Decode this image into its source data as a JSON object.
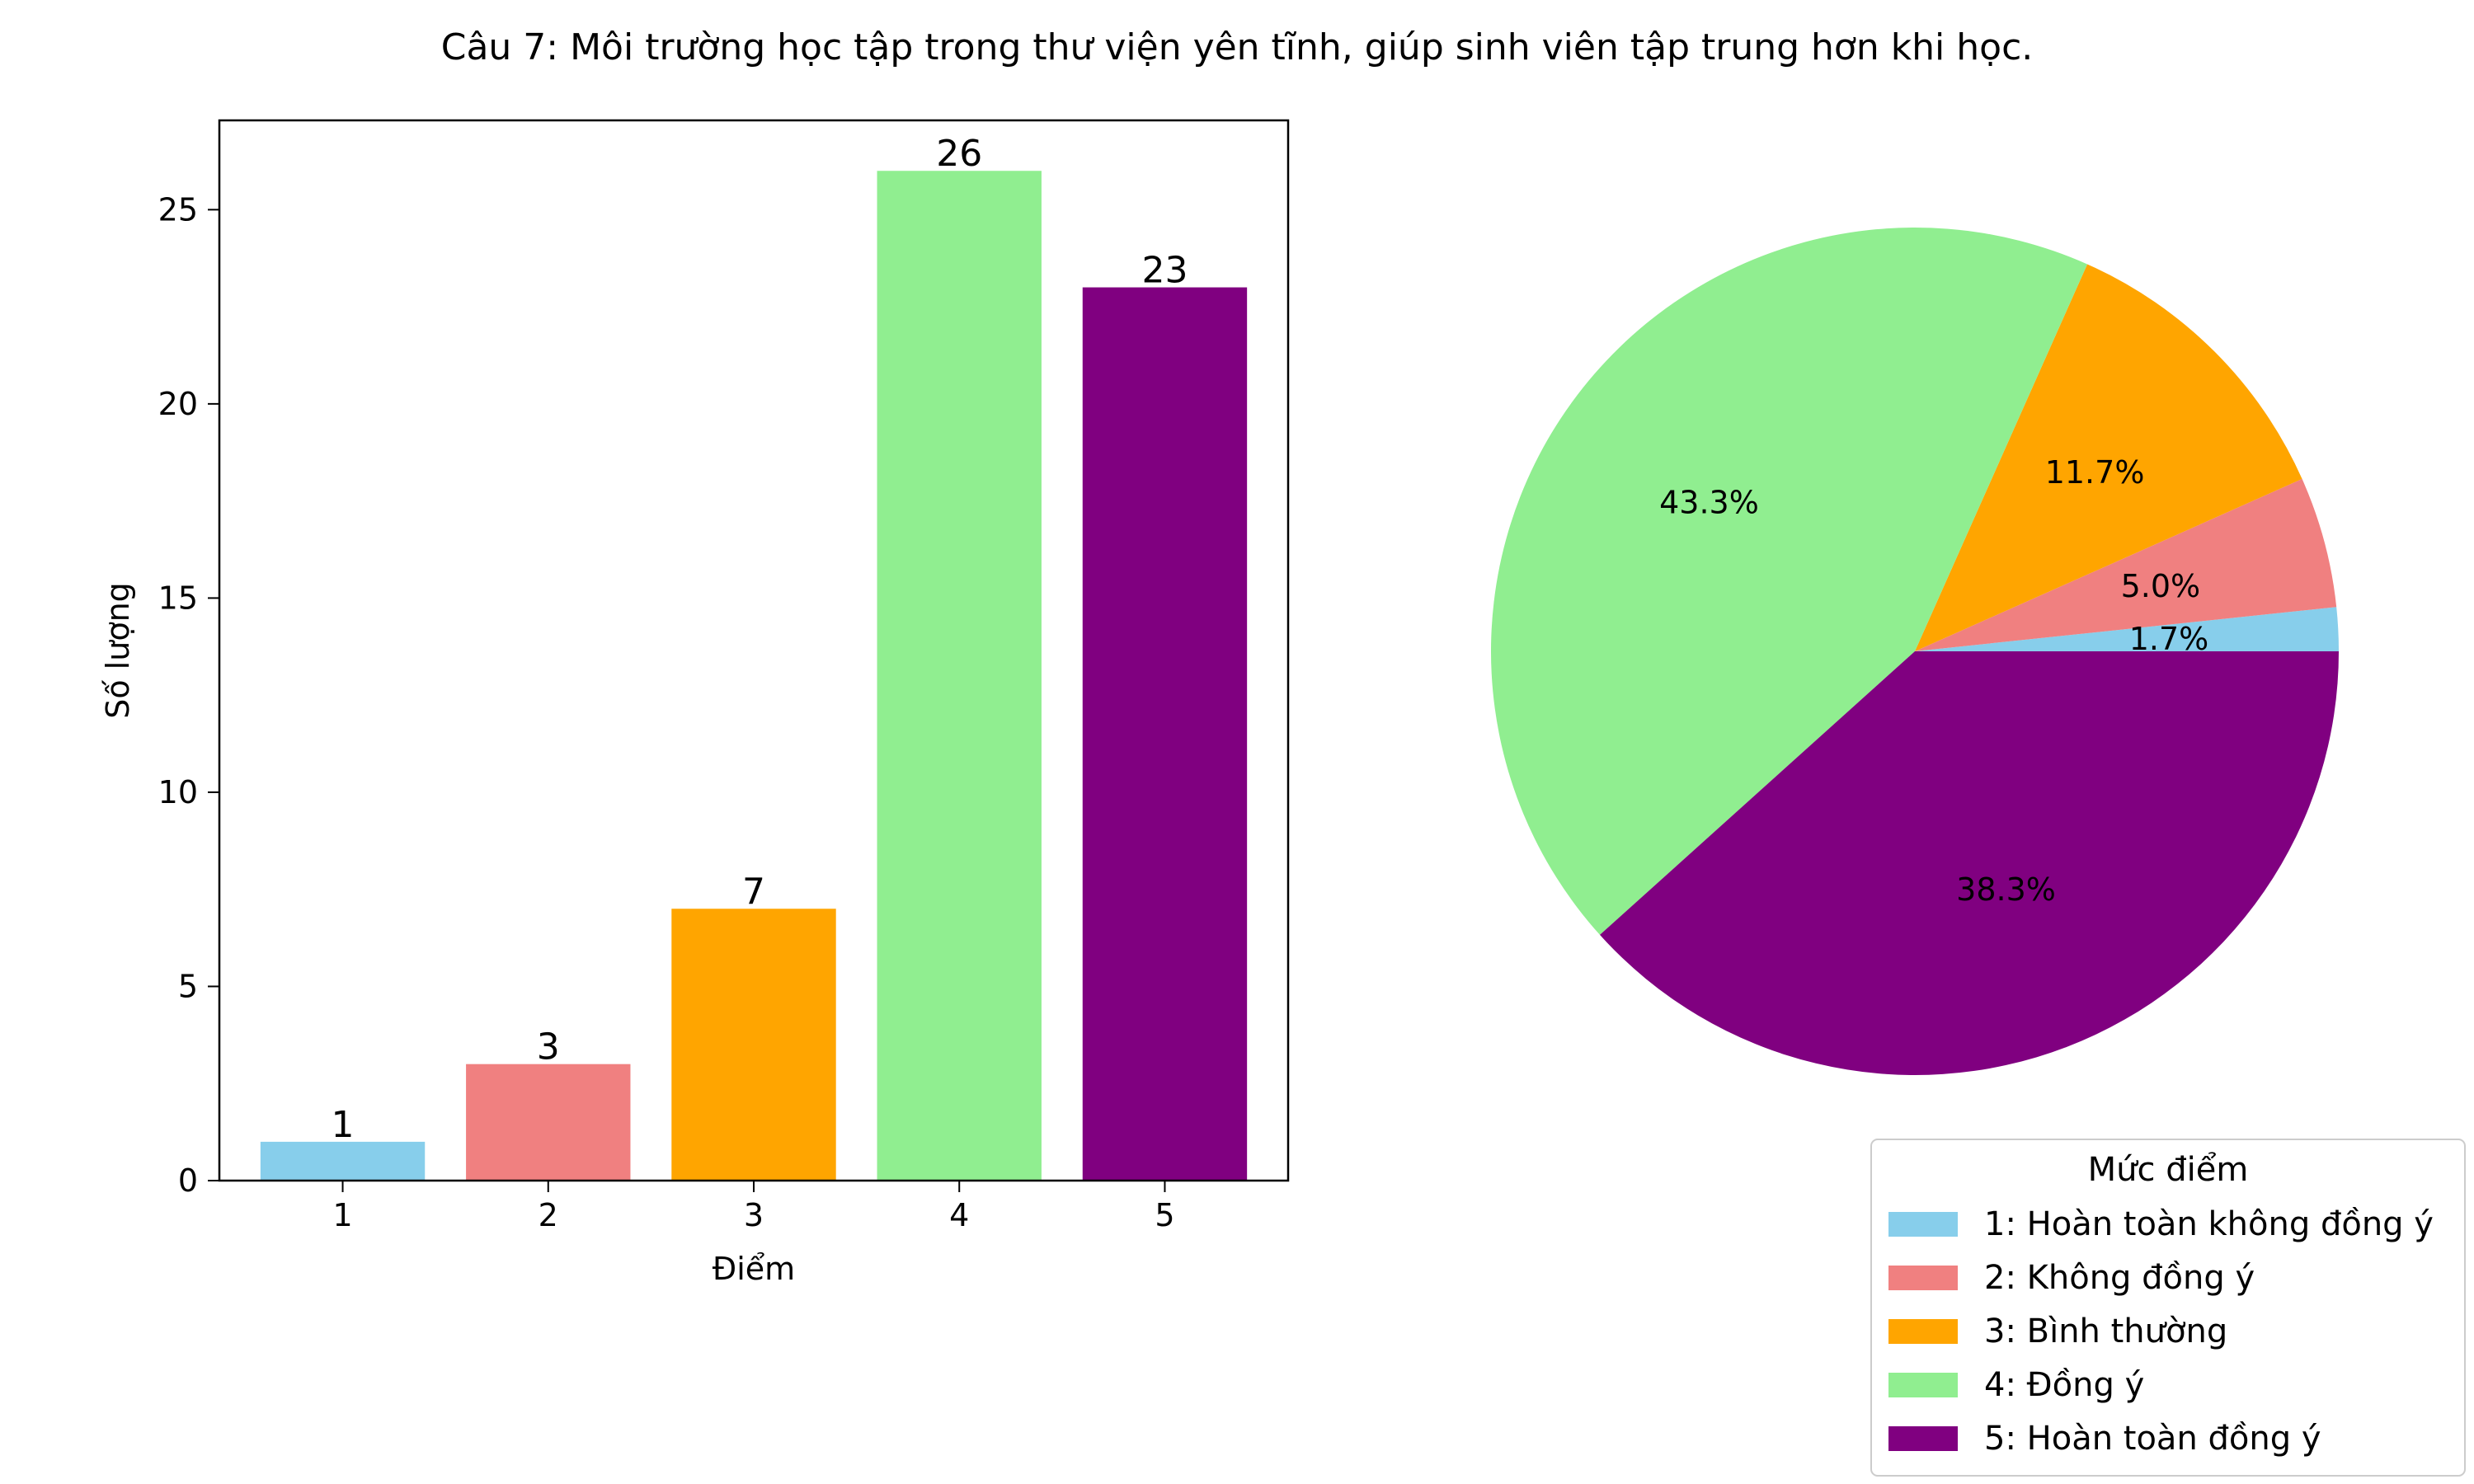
{
  "title": "Câu 7: Môi trường học tập trong thư viện yên tĩnh, giúp sinh viên tập trung hơn khi học.",
  "chart_data": [
    {
      "type": "bar",
      "categories": [
        "1",
        "2",
        "3",
        "4",
        "5"
      ],
      "values": [
        1,
        3,
        7,
        26,
        23
      ],
      "data_labels": [
        "1",
        "3",
        "7",
        "26",
        "23"
      ],
      "colors": [
        "#87ceeb",
        "#f08080",
        "#ffa500",
        "#90ee90",
        "#800080"
      ],
      "xlabel": "Điểm",
      "ylabel": "Số lượng",
      "ylim": [
        0,
        27.3
      ],
      "yticks": [
        0,
        5,
        10,
        15,
        20,
        25
      ],
      "ytick_labels": [
        "0",
        "5",
        "10",
        "15",
        "20",
        "25"
      ],
      "grid": false
    },
    {
      "type": "pie",
      "categories": [
        "1: Hoàn toàn không đồng ý",
        "2: Không đồng ý",
        "3: Bình thường",
        "4: Đồng ý",
        "5: Hoàn toàn đồng ý"
      ],
      "values": [
        1,
        3,
        7,
        26,
        23
      ],
      "percent_labels": [
        "1.7%",
        "5.0%",
        "11.7%",
        "43.3%",
        "38.3%"
      ],
      "colors": [
        "#87ceeb",
        "#f08080",
        "#ffa500",
        "#90ee90",
        "#800080"
      ],
      "legend_title": "Mức điểm",
      "legend_placement": "lower-right"
    }
  ]
}
